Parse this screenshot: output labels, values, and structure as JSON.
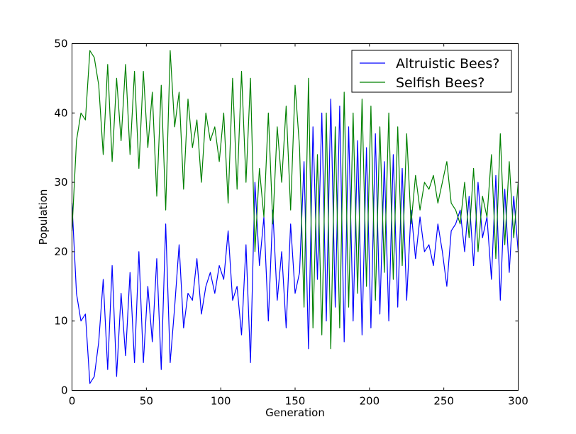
{
  "chart_data": {
    "type": "line",
    "xlabel": "Generation",
    "ylabel": "Population",
    "xlim": [
      0,
      300
    ],
    "ylim": [
      0,
      50
    ],
    "xticks": [
      "0",
      "50",
      "100",
      "150",
      "200",
      "250",
      "300"
    ],
    "yticks": [
      "0",
      "10",
      "20",
      "30",
      "40",
      "50"
    ],
    "grid": false,
    "legend_position": "upper-right",
    "x": [
      0,
      3,
      6,
      9,
      12,
      15,
      18,
      21,
      24,
      27,
      30,
      33,
      36,
      39,
      42,
      45,
      48,
      51,
      54,
      57,
      60,
      63,
      66,
      69,
      72,
      75,
      78,
      81,
      84,
      87,
      90,
      93,
      96,
      99,
      102,
      105,
      108,
      111,
      114,
      117,
      120,
      123,
      126,
      129,
      132,
      135,
      138,
      141,
      144,
      147,
      150,
      153,
      156,
      159,
      162,
      165,
      168,
      171,
      174,
      177,
      180,
      183,
      186,
      189,
      192,
      195,
      198,
      201,
      204,
      207,
      210,
      213,
      216,
      219,
      222,
      225,
      228,
      231,
      234,
      237,
      240,
      243,
      246,
      249,
      252,
      255,
      258,
      261,
      264,
      267,
      270,
      273,
      276,
      279,
      282,
      285,
      288,
      291,
      294,
      297,
      300
    ],
    "series": [
      {
        "name": "Altruistic Bees?",
        "color": "#0000ff",
        "values": [
          27,
          14,
          10,
          11,
          1,
          2,
          7,
          16,
          3,
          18,
          2,
          14,
          5,
          17,
          4,
          20,
          4,
          15,
          7,
          19,
          3,
          24,
          4,
          12,
          21,
          9,
          14,
          13,
          19,
          11,
          15,
          17,
          14,
          18,
          16,
          23,
          13,
          15,
          8,
          21,
          4,
          30,
          18,
          25,
          10,
          26,
          13,
          20,
          9,
          24,
          14,
          17,
          33,
          6,
          38,
          16,
          40,
          10,
          42,
          12,
          41,
          7,
          38,
          10,
          36,
          8,
          35,
          9,
          37,
          11,
          33,
          10,
          34,
          12,
          32,
          13,
          26,
          19,
          25,
          20,
          21,
          18,
          24,
          20,
          15,
          23,
          24,
          26,
          20,
          28,
          18,
          30,
          22,
          25,
          16,
          31,
          13,
          29,
          17,
          28,
          20
        ]
      },
      {
        "name": "Selfish Bees?",
        "color": "#008000",
        "values": [
          23,
          36,
          40,
          39,
          49,
          48,
          44,
          34,
          47,
          33,
          45,
          36,
          47,
          34,
          46,
          32,
          46,
          35,
          43,
          28,
          44,
          26,
          49,
          38,
          43,
          29,
          42,
          35,
          39,
          30,
          40,
          36,
          38,
          33,
          40,
          27,
          45,
          29,
          46,
          30,
          45,
          20,
          32,
          25,
          40,
          24,
          38,
          30,
          41,
          26,
          44,
          35,
          12,
          45,
          9,
          34,
          8,
          40,
          6,
          38,
          9,
          43,
          12,
          40,
          14,
          42,
          15,
          41,
          13,
          38,
          17,
          40,
          16,
          38,
          18,
          37,
          24,
          31,
          26,
          30,
          29,
          31,
          27,
          30,
          33,
          27,
          26,
          24,
          30,
          22,
          32,
          20,
          28,
          25,
          34,
          19,
          37,
          21,
          33,
          22,
          30
        ]
      }
    ]
  }
}
